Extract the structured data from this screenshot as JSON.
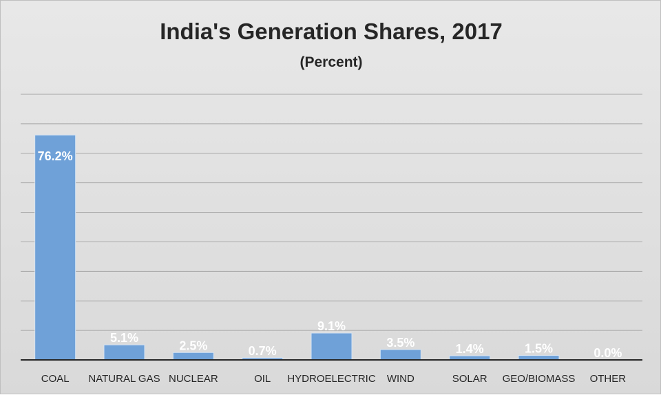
{
  "chart_data": {
    "type": "bar",
    "title": "India's Generation Shares, 2017",
    "subtitle": "(Percent)",
    "categories": [
      "COAL",
      "NATURAL GAS",
      "NUCLEAR",
      "OIL",
      "HYDROELECTRIC",
      "WIND",
      "SOLAR",
      "GEO/BIOMASS",
      "OTHER"
    ],
    "values": [
      76.2,
      5.1,
      2.5,
      0.7,
      9.1,
      3.5,
      1.4,
      1.5,
      0.0
    ],
    "data_labels": [
      "76.2%",
      "5.1%",
      "2.5%",
      "0.7%",
      "9.1%",
      "3.5%",
      "1.4%",
      "1.5%",
      "0.0%"
    ],
    "ylim": [
      0,
      90
    ],
    "grid": true,
    "legend": "none",
    "bar_color": "#6fa1d8",
    "bar_edge_color": "#d6e4f3",
    "background_color": "#e0e0e0"
  }
}
